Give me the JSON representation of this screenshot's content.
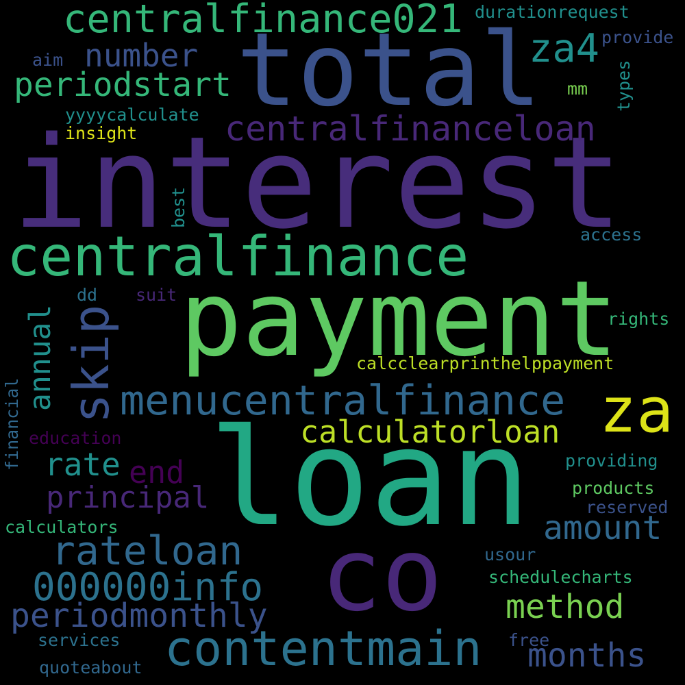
{
  "background": "#000000",
  "palette": {
    "dark_purple": "#440154",
    "indigo": "#482878",
    "violet": "#472d7b",
    "slate_blue": "#3b528b",
    "steel_blue": "#31688e",
    "teal_blue": "#2c728e",
    "teal": "#21908d",
    "jade": "#22a884",
    "green": "#35b779",
    "grass": "#5ec962",
    "lime": "#7ad151",
    "yellow_green": "#bddf26",
    "yellow": "#dde318"
  },
  "words": [
    {
      "id": "interest",
      "text": "interest",
      "color": "#472d7b",
      "orientation": "horizontal",
      "weight": 1.0
    },
    {
      "id": "loan",
      "text": "loan",
      "color": "#22a884",
      "orientation": "horizontal",
      "weight": 0.97
    },
    {
      "id": "total",
      "text": "total",
      "color": "#3b528b",
      "orientation": "horizontal",
      "weight": 0.82
    },
    {
      "id": "payment",
      "text": "payment",
      "color": "#5ec962",
      "orientation": "horizontal",
      "weight": 0.75
    },
    {
      "id": "co",
      "text": "co",
      "color": "#482878",
      "orientation": "horizontal",
      "weight": 0.72
    },
    {
      "id": "centralfinance",
      "text": "centralfinance",
      "color": "#35b779",
      "orientation": "horizontal",
      "weight": 0.55
    },
    {
      "id": "za",
      "text": "za",
      "color": "#dde318",
      "orientation": "horizontal",
      "weight": 0.55
    },
    {
      "id": "contentmain",
      "text": "contentmain",
      "color": "#2c728e",
      "orientation": "horizontal",
      "weight": 0.42
    },
    {
      "id": "menucentralfinance",
      "text": "menucentralfinance",
      "color": "#31688e",
      "orientation": "horizontal",
      "weight": 0.4
    },
    {
      "id": "centralfinance021",
      "text": "centralfinance021",
      "color": "#35b779",
      "orientation": "horizontal",
      "weight": 0.38
    },
    {
      "id": "skip",
      "text": "skip",
      "color": "#3b528b",
      "orientation": "vertical",
      "weight": 0.38
    },
    {
      "id": "000000info",
      "text": "000000info",
      "color": "#2c728e",
      "orientation": "horizontal",
      "weight": 0.36
    },
    {
      "id": "rateloan",
      "text": "rateloan",
      "color": "#31688e",
      "orientation": "horizontal",
      "weight": 0.36
    },
    {
      "id": "centralfinanceloan",
      "text": "centralfinanceloan",
      "color": "#482878",
      "orientation": "horizontal",
      "weight": 0.32
    },
    {
      "id": "za4",
      "text": "za4",
      "color": "#21908d",
      "orientation": "horizontal",
      "weight": 0.32
    },
    {
      "id": "periodmonthly",
      "text": "periodmonthly",
      "color": "#3b528b",
      "orientation": "horizontal",
      "weight": 0.31
    },
    {
      "id": "calculatorloan",
      "text": "calculatorloan",
      "color": "#bddf26",
      "orientation": "horizontal",
      "weight": 0.31
    },
    {
      "id": "method",
      "text": "method",
      "color": "#7ad151",
      "orientation": "horizontal",
      "weight": 0.31
    },
    {
      "id": "months",
      "text": "months",
      "color": "#3b528b",
      "orientation": "horizontal",
      "weight": 0.3
    },
    {
      "id": "amount",
      "text": "amount",
      "color": "#31688e",
      "orientation": "horizontal",
      "weight": 0.3
    },
    {
      "id": "periodstart",
      "text": "periodstart",
      "color": "#35b779",
      "orientation": "horizontal",
      "weight": 0.3
    },
    {
      "id": "number",
      "text": "number",
      "color": "#3b528b",
      "orientation": "horizontal",
      "weight": 0.29
    },
    {
      "id": "principal",
      "text": "principal",
      "color": "#482878",
      "orientation": "horizontal",
      "weight": 0.27
    },
    {
      "id": "rate",
      "text": "rate",
      "color": "#21908d",
      "orientation": "horizontal",
      "weight": 0.27
    },
    {
      "id": "end",
      "text": "end",
      "color": "#440154",
      "orientation": "horizontal",
      "weight": 0.26
    },
    {
      "id": "annual",
      "text": "annual",
      "color": "#21908d",
      "orientation": "vertical",
      "weight": 0.25
    },
    {
      "id": "calcclearprinthelppayment",
      "text": "calcclearprinthelppayment",
      "color": "#bddf26",
      "orientation": "horizontal",
      "weight": 0.16
    },
    {
      "id": "schedulecharts",
      "text": "schedulecharts",
      "color": "#35b779",
      "orientation": "horizontal",
      "weight": 0.16
    },
    {
      "id": "durationrequest",
      "text": "durationrequest",
      "color": "#21908d",
      "orientation": "horizontal",
      "weight": 0.15
    },
    {
      "id": "calculators",
      "text": "calculators",
      "color": "#35b779",
      "orientation": "horizontal",
      "weight": 0.15
    },
    {
      "id": "providing",
      "text": "providing",
      "color": "#21908d",
      "orientation": "horizontal",
      "weight": 0.15
    },
    {
      "id": "products",
      "text": "products",
      "color": "#5ec962",
      "orientation": "horizontal",
      "weight": 0.15
    },
    {
      "id": "reserved",
      "text": "reserved",
      "color": "#3b528b",
      "orientation": "horizontal",
      "weight": 0.15
    },
    {
      "id": "rights",
      "text": "rights",
      "color": "#35b779",
      "orientation": "horizontal",
      "weight": 0.15
    },
    {
      "id": "access",
      "text": "access",
      "color": "#2c728e",
      "orientation": "horizontal",
      "weight": 0.15
    },
    {
      "id": "education",
      "text": "education",
      "color": "#440154",
      "orientation": "horizontal",
      "weight": 0.15
    },
    {
      "id": "quoteabout",
      "text": "quoteabout",
      "color": "#31688e",
      "orientation": "horizontal",
      "weight": 0.15
    },
    {
      "id": "services",
      "text": "services",
      "color": "#2c728e",
      "orientation": "horizontal",
      "weight": 0.15
    },
    {
      "id": "free",
      "text": "free",
      "color": "#3b528b",
      "orientation": "horizontal",
      "weight": 0.15
    },
    {
      "id": "usour",
      "text": "usour",
      "color": "#31688e",
      "orientation": "horizontal",
      "weight": 0.15
    },
    {
      "id": "yyyycalculate",
      "text": "yyyycalculate",
      "color": "#21908d",
      "orientation": "horizontal",
      "weight": 0.15
    },
    {
      "id": "insight",
      "text": "insight",
      "color": "#dde318",
      "orientation": "horizontal",
      "weight": 0.15
    },
    {
      "id": "provide",
      "text": "provide",
      "color": "#3b528b",
      "orientation": "horizontal",
      "weight": 0.15
    },
    {
      "id": "aim",
      "text": "aim",
      "color": "#3b528b",
      "orientation": "horizontal",
      "weight": 0.15
    },
    {
      "id": "mm",
      "text": "mm",
      "color": "#7ad151",
      "orientation": "horizontal",
      "weight": 0.15
    },
    {
      "id": "dd",
      "text": "dd",
      "color": "#2c728e",
      "orientation": "horizontal",
      "weight": 0.15
    },
    {
      "id": "suit",
      "text": "suit",
      "color": "#482878",
      "orientation": "horizontal",
      "weight": 0.15
    },
    {
      "id": "types",
      "text": "types",
      "color": "#21908d",
      "orientation": "vertical",
      "weight": 0.15
    },
    {
      "id": "best",
      "text": "best",
      "color": "#21908d",
      "orientation": "vertical",
      "weight": 0.15
    },
    {
      "id": "financial",
      "text": "financial",
      "color": "#31688e",
      "orientation": "vertical",
      "weight": 0.15
    }
  ]
}
